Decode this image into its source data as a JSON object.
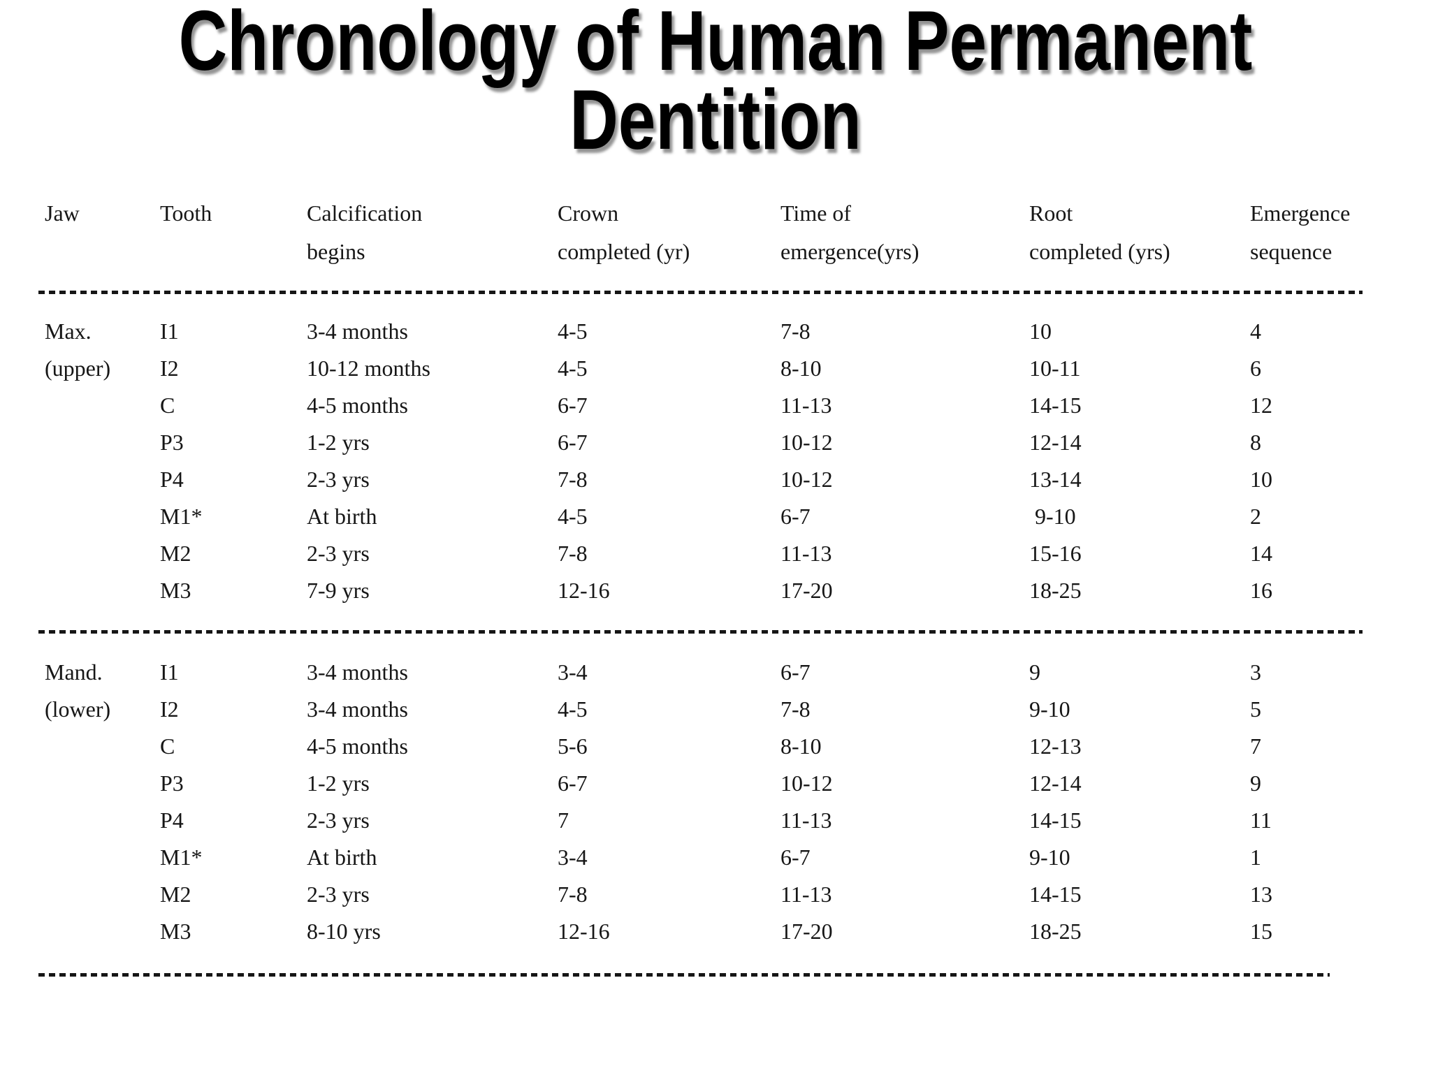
{
  "slide": {
    "title_line1": "Chronology of Human Permanent",
    "title_line2": "Dentition"
  },
  "colors": {
    "background": "#ffffff",
    "text": "#161616",
    "title_shadow": "#5a5a5a"
  },
  "table": {
    "headers": [
      "Jaw",
      "Tooth",
      "Calcification\nbegins",
      "Crown\ncompleted (yr)",
      "Time of\nemergence(yrs)",
      "Root\ncompleted (yrs)",
      "Emergence\nsequence"
    ],
    "column_keys": [
      "jaw",
      "tooth",
      "calcification-begins",
      "crown-completed",
      "time-of-emergence",
      "root-completed",
      "emergence-sequence"
    ],
    "sections": [
      {
        "id": "maxillary-upper",
        "rows": [
          [
            "Max.",
            "I1",
            "3-4 months",
            "4-5",
            "7-8",
            "10",
            "4"
          ],
          [
            "(upper)",
            "I2",
            "10-12 months",
            "4-5",
            "8-10",
            "10-11",
            "6"
          ],
          [
            "",
            "C",
            "4-5 months",
            "6-7",
            "11-13",
            "14-15",
            "12"
          ],
          [
            "",
            "P3",
            "1-2 yrs",
            "6-7",
            "10-12",
            "12-14",
            "8"
          ],
          [
            "",
            "P4",
            "2-3 yrs",
            "7-8",
            "10-12",
            "13-14",
            "10"
          ],
          [
            "",
            "M1*",
            "At birth",
            "4-5",
            "6-7",
            " 9-10",
            "2"
          ],
          [
            "",
            "M2",
            "2-3 yrs",
            "7-8",
            "11-13",
            "15-16",
            "14"
          ],
          [
            "",
            "M3",
            "7-9 yrs",
            "12-16",
            "17-20",
            "18-25",
            "16"
          ]
        ]
      },
      {
        "id": "mandibular-lower",
        "rows": [
          [
            "Mand.",
            "I1",
            "3-4 months",
            "3-4",
            "6-7",
            "9",
            "3"
          ],
          [
            "(lower)",
            "I2",
            "3-4 months",
            "4-5",
            "7-8",
            "9-10",
            "5"
          ],
          [
            "",
            "C",
            "4-5 months",
            "5-6",
            "8-10",
            "12-13",
            "7"
          ],
          [
            "",
            "P3",
            "1-2 yrs",
            "6-7",
            "10-12",
            "12-14",
            "9"
          ],
          [
            "",
            "P4",
            "2-3 yrs",
            "7",
            "11-13",
            "14-15",
            "11"
          ],
          [
            "",
            "M1*",
            "At birth",
            "3-4",
            "6-7",
            "9-10",
            "1"
          ],
          [
            "",
            "M2",
            "2-3 yrs",
            "7-8",
            "11-13",
            "14-15",
            "13"
          ],
          [
            "",
            "M3",
            "8-10 yrs",
            "12-16",
            "17-20",
            "18-25",
            "15"
          ]
        ]
      }
    ]
  }
}
